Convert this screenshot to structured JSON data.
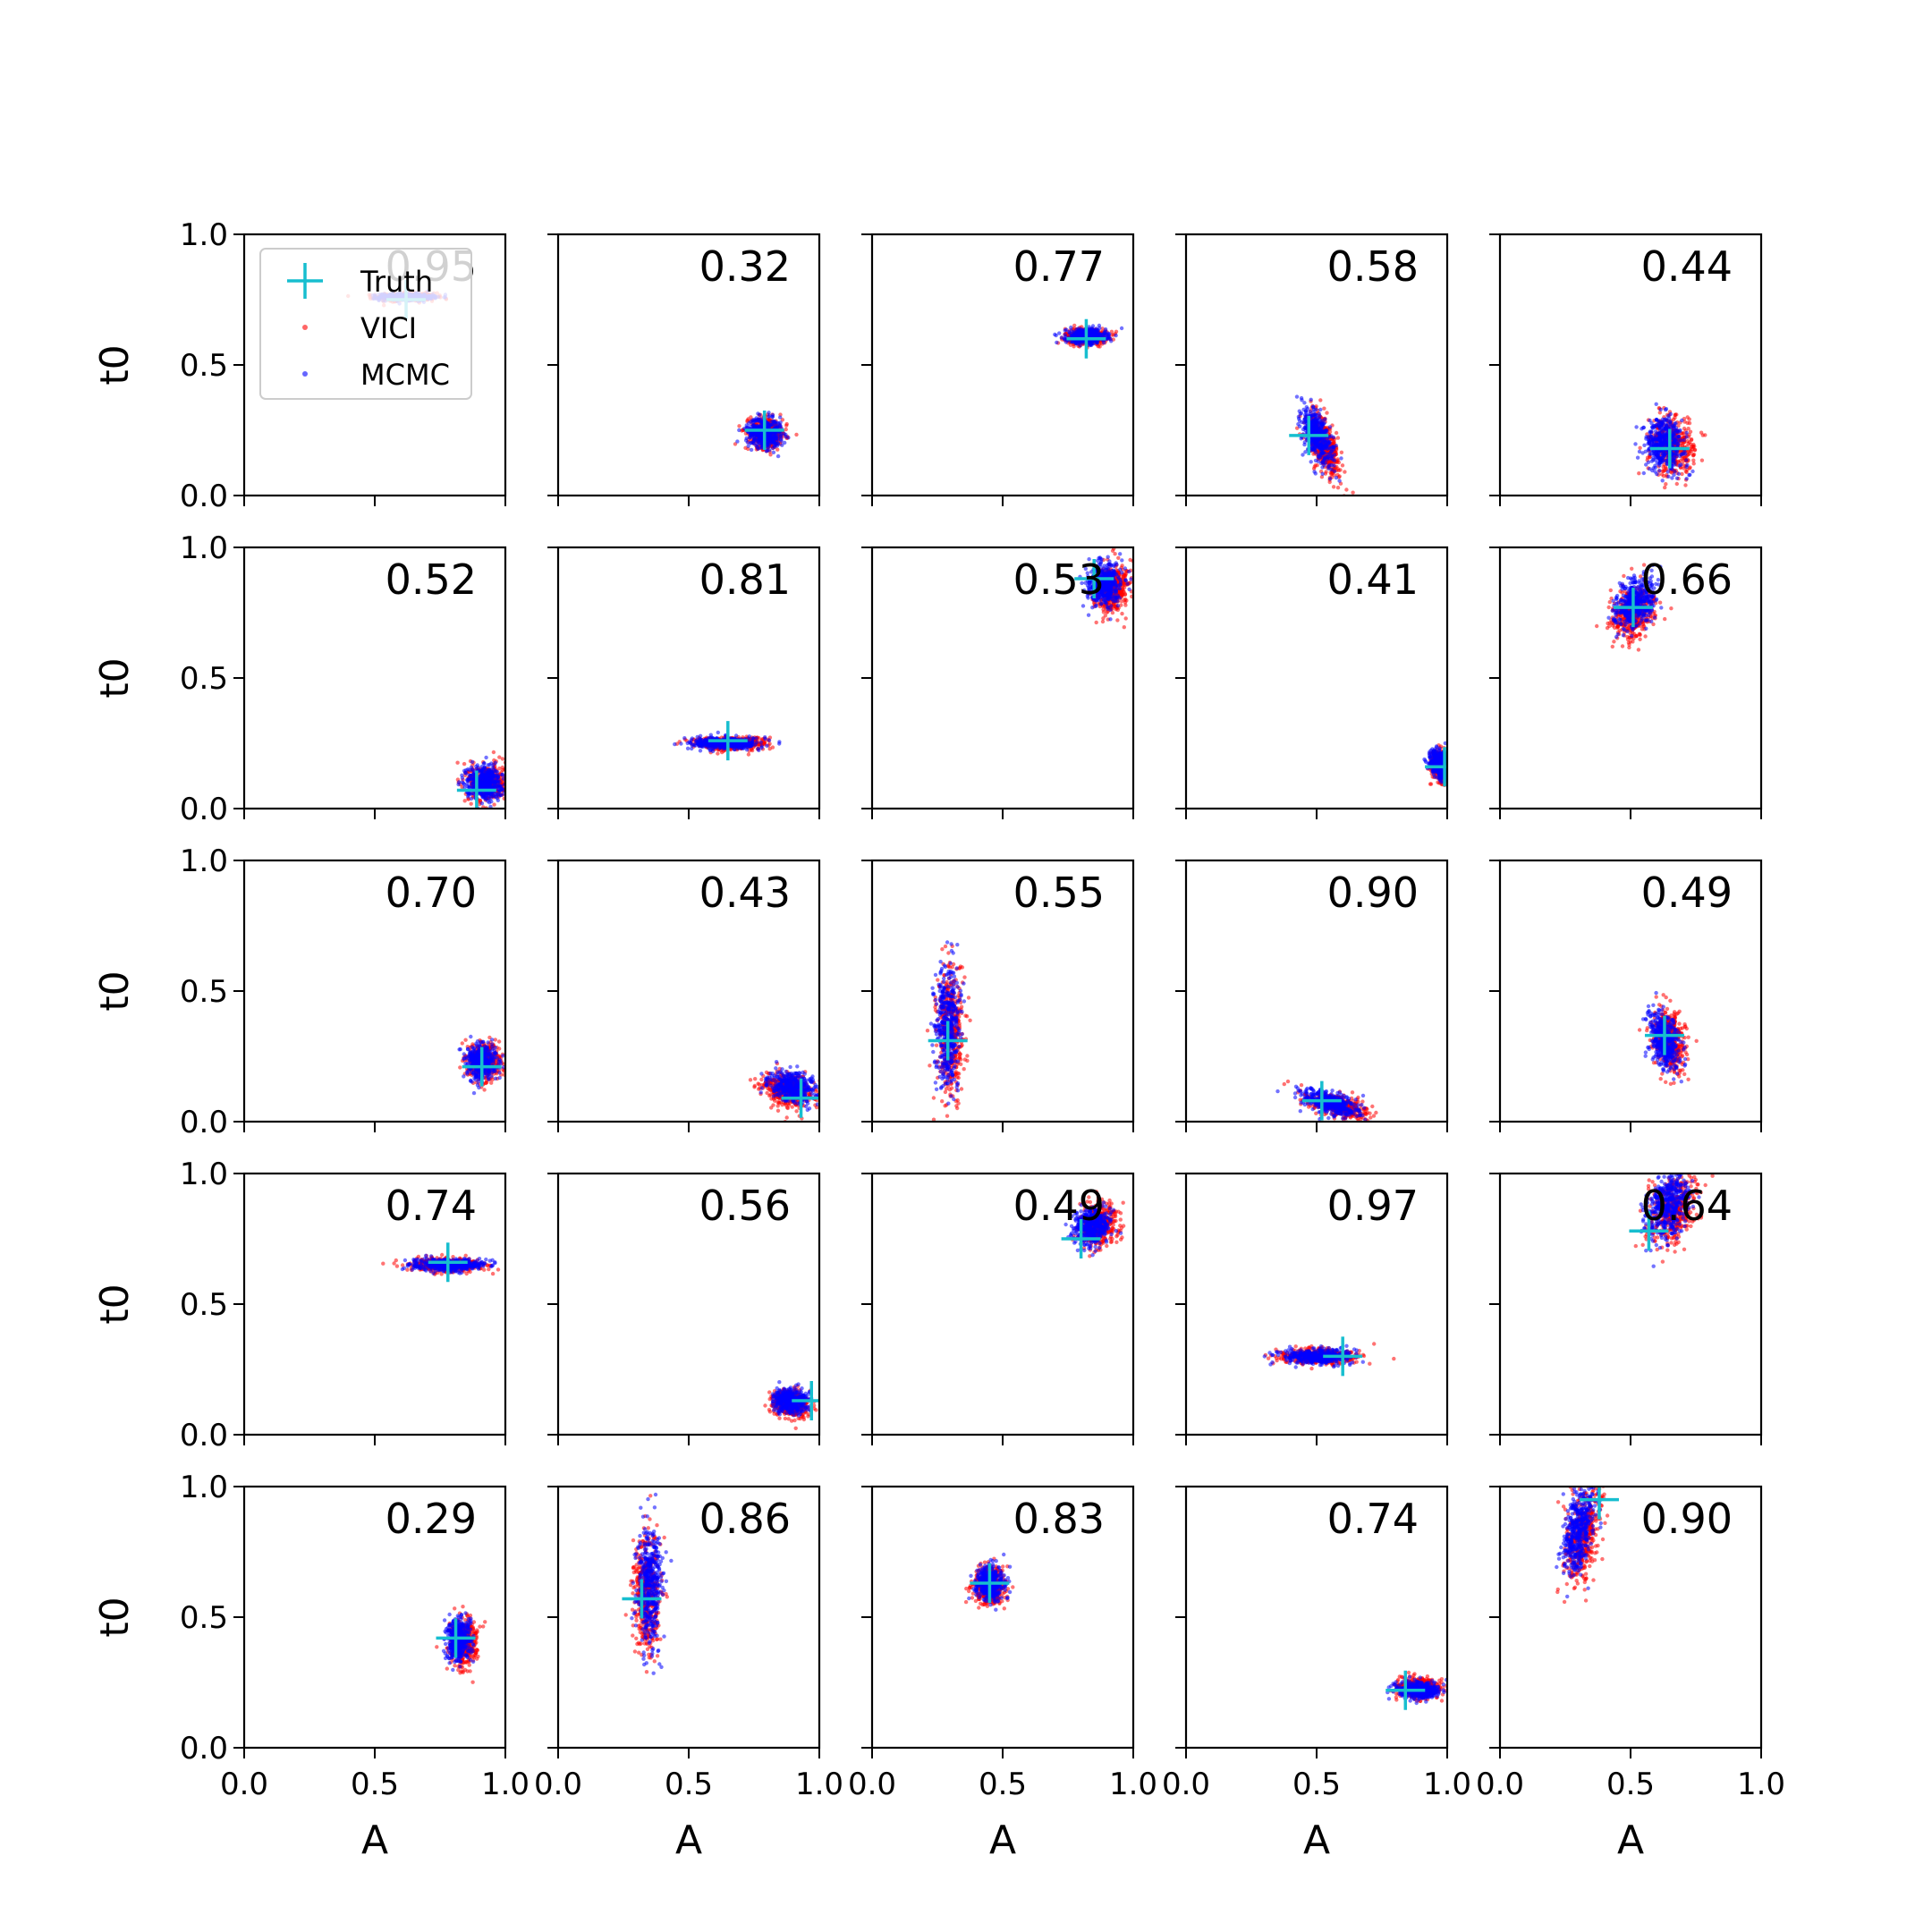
{
  "chart_data": {
    "type": "scatter",
    "layout": "grid",
    "rows": 5,
    "cols": 5,
    "xlabel": "A",
    "ylabel": "t0",
    "xlim": [
      0.0,
      1.0
    ],
    "ylim": [
      0.0,
      1.0
    ],
    "xticks": [
      "0.0",
      "0.5",
      "1.0"
    ],
    "yticks": [
      "0.0",
      "0.5",
      "1.0"
    ],
    "grid": false,
    "legend": {
      "placement": "top-left of first panel",
      "entries": [
        {
          "label": "Truth",
          "marker": "+",
          "color": "#17becf"
        },
        {
          "label": "VICI",
          "marker": "dot",
          "color": "#ff0000"
        },
        {
          "label": "MCMC",
          "marker": "dot",
          "color": "#0000ff"
        }
      ]
    },
    "colors": {
      "truth": "#17becf",
      "vici": "#ff0000",
      "mcmc": "#0000ff"
    },
    "panels": [
      {
        "overlap": "0.95",
        "truth": [
          0.62,
          0.75
        ],
        "vici": {
          "center": [
            0.62,
            0.76
          ],
          "spread": [
            0.11,
            0.015
          ],
          "rot": 0
        },
        "mcmc": {
          "center": [
            0.62,
            0.76
          ],
          "spread": [
            0.1,
            0.013
          ],
          "rot": 0
        }
      },
      {
        "overlap": "0.32",
        "truth": [
          0.79,
          0.25
        ],
        "vici": {
          "center": [
            0.8,
            0.24
          ],
          "spread": [
            0.07,
            0.06
          ],
          "rot": -10
        },
        "mcmc": {
          "center": [
            0.79,
            0.24
          ],
          "spread": [
            0.065,
            0.055
          ],
          "rot": -10
        }
      },
      {
        "overlap": "0.77",
        "truth": [
          0.82,
          0.6
        ],
        "vici": {
          "center": [
            0.82,
            0.61
          ],
          "spread": [
            0.08,
            0.03
          ],
          "rot": 0
        },
        "mcmc": {
          "center": [
            0.82,
            0.61
          ],
          "spread": [
            0.075,
            0.028
          ],
          "rot": 0
        }
      },
      {
        "overlap": "0.58",
        "truth": [
          0.47,
          0.23
        ],
        "vici": {
          "center": [
            0.53,
            0.19
          ],
          "spread": [
            0.05,
            0.12
          ],
          "rot": 20
        },
        "mcmc": {
          "center": [
            0.5,
            0.23
          ],
          "spread": [
            0.045,
            0.11
          ],
          "rot": 20
        }
      },
      {
        "overlap": "0.44",
        "truth": [
          0.65,
          0.18
        ],
        "vici": {
          "center": [
            0.66,
            0.19
          ],
          "spread": [
            0.08,
            0.11
          ],
          "rot": 10
        },
        "mcmc": {
          "center": [
            0.63,
            0.2
          ],
          "spread": [
            0.075,
            0.1
          ],
          "rot": 10
        }
      },
      {
        "overlap": "0.52",
        "truth": [
          0.89,
          0.07
        ],
        "vici": {
          "center": [
            0.93,
            0.1
          ],
          "spread": [
            0.07,
            0.07
          ],
          "rot": 0
        },
        "mcmc": {
          "center": [
            0.92,
            0.1
          ],
          "spread": [
            0.07,
            0.065
          ],
          "rot": 0
        }
      },
      {
        "overlap": "0.81",
        "truth": [
          0.65,
          0.26
        ],
        "vici": {
          "center": [
            0.66,
            0.25
          ],
          "spread": [
            0.14,
            0.025
          ],
          "rot": 0
        },
        "mcmc": {
          "center": [
            0.64,
            0.25
          ],
          "spread": [
            0.13,
            0.022
          ],
          "rot": 0
        }
      },
      {
        "overlap": "0.53",
        "truth": [
          0.85,
          0.88
        ],
        "vici": {
          "center": [
            0.92,
            0.84
          ],
          "spread": [
            0.06,
            0.09
          ],
          "rot": -15
        },
        "mcmc": {
          "center": [
            0.89,
            0.86
          ],
          "spread": [
            0.06,
            0.08
          ],
          "rot": -15
        }
      },
      {
        "overlap": "0.41",
        "truth": [
          0.99,
          0.16
        ],
        "vici": {
          "center": [
            0.98,
            0.16
          ],
          "spread": [
            0.04,
            0.06
          ],
          "rot": 20
        },
        "mcmc": {
          "center": [
            0.97,
            0.17
          ],
          "spread": [
            0.035,
            0.055
          ],
          "rot": 20
        }
      },
      {
        "overlap": "0.66",
        "truth": [
          0.51,
          0.77
        ],
        "vici": {
          "center": [
            0.51,
            0.74
          ],
          "spread": [
            0.075,
            0.1
          ],
          "rot": -25
        },
        "mcmc": {
          "center": [
            0.52,
            0.79
          ],
          "spread": [
            0.07,
            0.1
          ],
          "rot": -25
        }
      },
      {
        "overlap": "0.70",
        "truth": [
          0.91,
          0.21
        ],
        "vici": {
          "center": [
            0.92,
            0.23
          ],
          "spread": [
            0.06,
            0.07
          ],
          "rot": 0
        },
        "mcmc": {
          "center": [
            0.91,
            0.23
          ],
          "spread": [
            0.055,
            0.065
          ],
          "rot": 0
        }
      },
      {
        "overlap": "0.43",
        "truth": [
          0.93,
          0.09
        ],
        "vici": {
          "center": [
            0.88,
            0.12
          ],
          "spread": [
            0.1,
            0.06
          ],
          "rot": -15
        },
        "mcmc": {
          "center": [
            0.9,
            0.13
          ],
          "spread": [
            0.09,
            0.055
          ],
          "rot": -15
        }
      },
      {
        "overlap": "0.55",
        "truth": [
          0.29,
          0.31
        ],
        "vici": {
          "center": [
            0.3,
            0.34
          ],
          "spread": [
            0.05,
            0.24
          ],
          "rot": 0
        },
        "mcmc": {
          "center": [
            0.29,
            0.37
          ],
          "spread": [
            0.045,
            0.23
          ],
          "rot": 0
        }
      },
      {
        "overlap": "0.90",
        "truth": [
          0.52,
          0.08
        ],
        "vici": {
          "center": [
            0.58,
            0.06
          ],
          "spread": [
            0.12,
            0.04
          ],
          "rot": -15
        },
        "mcmc": {
          "center": [
            0.55,
            0.07
          ],
          "spread": [
            0.11,
            0.04
          ],
          "rot": -15
        }
      },
      {
        "overlap": "0.49",
        "truth": [
          0.63,
          0.33
        ],
        "vici": {
          "center": [
            0.65,
            0.31
          ],
          "spread": [
            0.06,
            0.12
          ],
          "rot": 10
        },
        "mcmc": {
          "center": [
            0.63,
            0.31
          ],
          "spread": [
            0.055,
            0.11
          ],
          "rot": 10
        }
      },
      {
        "overlap": "0.74",
        "truth": [
          0.78,
          0.66
        ],
        "vici": {
          "center": [
            0.78,
            0.65
          ],
          "spread": [
            0.14,
            0.025
          ],
          "rot": 0
        },
        "mcmc": {
          "center": [
            0.78,
            0.65
          ],
          "spread": [
            0.13,
            0.022
          ],
          "rot": 0
        }
      },
      {
        "overlap": "0.56",
        "truth": [
          0.97,
          0.13
        ],
        "vici": {
          "center": [
            0.89,
            0.12
          ],
          "spread": [
            0.07,
            0.05
          ],
          "rot": -10
        },
        "mcmc": {
          "center": [
            0.89,
            0.13
          ],
          "spread": [
            0.065,
            0.045
          ],
          "rot": -10
        }
      },
      {
        "overlap": "0.49",
        "truth": [
          0.8,
          0.75
        ],
        "vici": {
          "center": [
            0.87,
            0.8
          ],
          "spread": [
            0.07,
            0.08
          ],
          "rot": -30
        },
        "mcmc": {
          "center": [
            0.84,
            0.8
          ],
          "spread": [
            0.065,
            0.075
          ],
          "rot": -30
        }
      },
      {
        "overlap": "0.97",
        "truth": [
          0.6,
          0.3
        ],
        "vici": {
          "center": [
            0.5,
            0.3
          ],
          "spread": [
            0.14,
            0.03
          ],
          "rot": 0
        },
        "mcmc": {
          "center": [
            0.5,
            0.3
          ],
          "spread": [
            0.13,
            0.028
          ],
          "rot": 0
        }
      },
      {
        "overlap": "0.64",
        "truth": [
          0.57,
          0.78
        ],
        "vici": {
          "center": [
            0.66,
            0.86
          ],
          "spread": [
            0.08,
            0.14
          ],
          "rot": -20
        },
        "mcmc": {
          "center": [
            0.64,
            0.87
          ],
          "spread": [
            0.075,
            0.13
          ],
          "rot": -20
        }
      },
      {
        "overlap": "0.29",
        "truth": [
          0.81,
          0.42
        ],
        "vici": {
          "center": [
            0.84,
            0.4
          ],
          "spread": [
            0.05,
            0.09
          ],
          "rot": 0
        },
        "mcmc": {
          "center": [
            0.82,
            0.41
          ],
          "spread": [
            0.045,
            0.085
          ],
          "rot": 0
        }
      },
      {
        "overlap": "0.86",
        "truth": [
          0.32,
          0.57
        ],
        "vici": {
          "center": [
            0.34,
            0.59
          ],
          "spread": [
            0.05,
            0.23
          ],
          "rot": 0
        },
        "mcmc": {
          "center": [
            0.35,
            0.62
          ],
          "spread": [
            0.045,
            0.22
          ],
          "rot": 0
        }
      },
      {
        "overlap": "0.83",
        "truth": [
          0.45,
          0.63
        ],
        "vici": {
          "center": [
            0.45,
            0.62
          ],
          "spread": [
            0.06,
            0.07
          ],
          "rot": 0
        },
        "mcmc": {
          "center": [
            0.45,
            0.63
          ],
          "spread": [
            0.055,
            0.065
          ],
          "rot": 0
        }
      },
      {
        "overlap": "0.74",
        "truth": [
          0.84,
          0.22
        ],
        "vici": {
          "center": [
            0.89,
            0.23
          ],
          "spread": [
            0.08,
            0.035
          ],
          "rot": 0
        },
        "mcmc": {
          "center": [
            0.89,
            0.22
          ],
          "spread": [
            0.075,
            0.032
          ],
          "rot": 0
        }
      },
      {
        "overlap": "0.90",
        "truth": [
          0.38,
          0.95
        ],
        "vici": {
          "center": [
            0.32,
            0.82
          ],
          "spread": [
            0.06,
            0.18
          ],
          "rot": -10
        },
        "mcmc": {
          "center": [
            0.3,
            0.83
          ],
          "spread": [
            0.055,
            0.17
          ],
          "rot": -10
        }
      }
    ]
  }
}
